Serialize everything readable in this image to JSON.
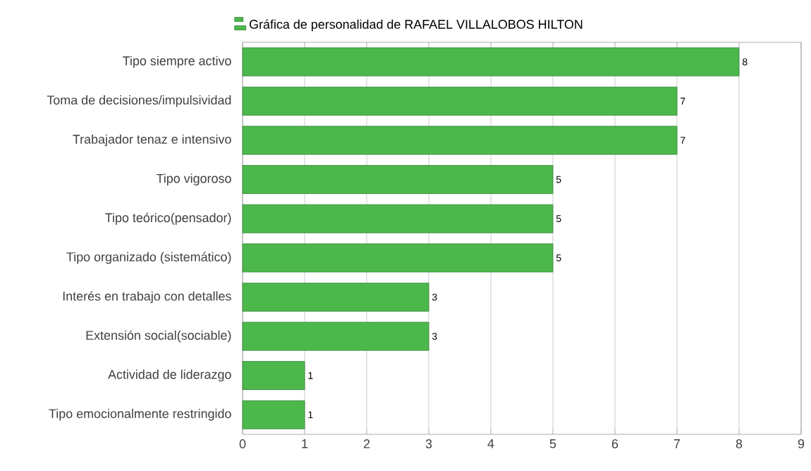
{
  "chart_data": {
    "type": "bar",
    "orientation": "horizontal",
    "categories": [
      "Tipo siempre activo",
      "Toma de decisiones/impulsividad",
      "Trabajador tenaz e intensivo",
      "Tipo vigoroso",
      "Tipo teórico(pensador)",
      "Tipo organizado (sistemático)",
      "Interés en trabajo con detalles",
      "Extensión social(sociable)",
      "Actividad de liderazgo",
      "Tipo emocionalmente restringido"
    ],
    "series": [
      {
        "name": "Gráfica de personalidad de RAFAEL VILLALOBOS HILTON",
        "color": "#4cb84c",
        "values": [
          8,
          7,
          7,
          5,
          5,
          5,
          3,
          3,
          1,
          1
        ]
      }
    ],
    "xlim": [
      0,
      9
    ],
    "xticks": [
      0,
      1,
      2,
      3,
      4,
      5,
      6,
      7,
      8,
      9
    ],
    "grid": "x",
    "legend": "top",
    "data_labels": true
  }
}
